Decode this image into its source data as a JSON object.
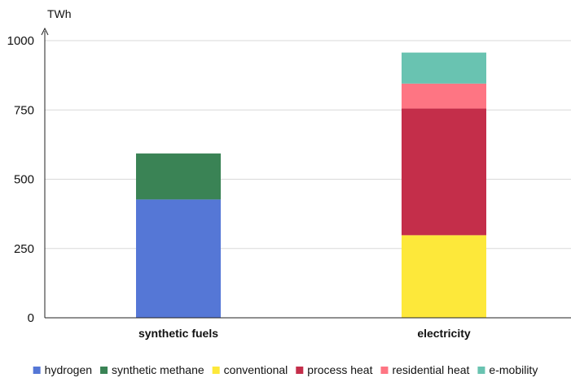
{
  "chart_data": {
    "type": "bar",
    "stacked": true,
    "title": "",
    "xlabel": "",
    "ylabel": "TWh",
    "ylim": [
      0,
      1000
    ],
    "yticks": [
      0,
      250,
      500,
      750,
      1000
    ],
    "ytick_labels": [
      "0",
      "250",
      "500",
      "750",
      "1000"
    ],
    "grid": true,
    "legend_position": "bottom",
    "categories": [
      "synthetic fuels",
      "electricity"
    ],
    "series": [
      {
        "name": "hydrogen",
        "color": "#5577D6",
        "values": [
          427,
          0
        ]
      },
      {
        "name": "synthetic methane",
        "color": "#3A8355",
        "values": [
          166,
          0
        ]
      },
      {
        "name": "conventional",
        "color": "#FDE83A",
        "values": [
          0,
          298
        ]
      },
      {
        "name": "process heat",
        "color": "#C42E4A",
        "values": [
          0,
          457
        ]
      },
      {
        "name": "residential heat",
        "color": "#FE7583",
        "values": [
          0,
          90
        ]
      },
      {
        "name": "e-mobility",
        "color": "#69C3B1",
        "values": [
          0,
          112
        ]
      }
    ]
  }
}
